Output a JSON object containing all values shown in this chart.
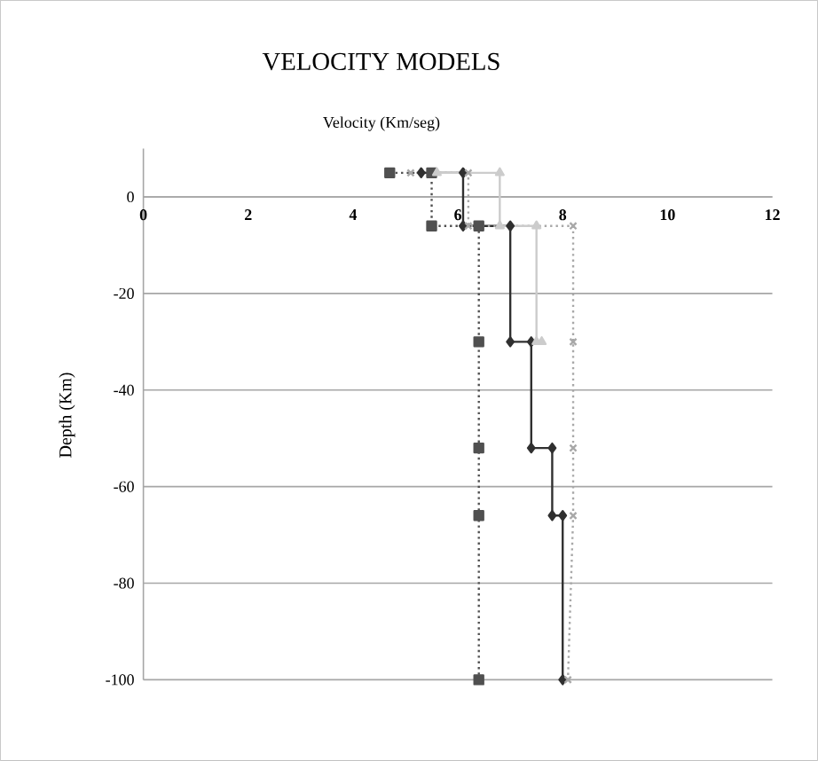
{
  "chart_data": {
    "type": "line",
    "title": "VELOCITY MODELS",
    "xlabel": "Velocity (Km/seg)",
    "ylabel": "Depth (Km)",
    "xlim": [
      0,
      12
    ],
    "xticks": [
      0,
      2,
      4,
      6,
      8,
      10,
      12
    ],
    "ylim": [
      -100,
      10
    ],
    "yticks": [
      0,
      -20,
      -40,
      -60,
      -80,
      -100
    ],
    "grid": "y",
    "series": [
      {
        "color": "#505050",
        "marker": "square",
        "line_style": "dotted",
        "x": [
          4.7,
          5.5,
          5.5,
          6.4,
          6.4,
          6.4,
          6.4,
          6.4
        ],
        "values": [
          5,
          5,
          -6,
          -6,
          -30,
          -52,
          -66,
          -100
        ]
      },
      {
        "color": "#303030",
        "marker": "diamond",
        "line_style": "solid",
        "x": [
          5.3,
          6.1,
          6.1,
          7.0,
          7.0,
          7.4,
          7.4,
          7.8,
          7.8,
          8.0,
          8.0
        ],
        "values": [
          5,
          5,
          -6,
          -6,
          -30,
          -30,
          -52,
          -52,
          -66,
          -66,
          -100
        ]
      },
      {
        "color": "#a8a8a8",
        "marker": "cross",
        "line_style": "dotted",
        "x": [
          5.1,
          6.2,
          6.2,
          8.2,
          8.2,
          8.2,
          8.2,
          8.1
        ],
        "values": [
          5,
          5,
          -6,
          -6,
          -30,
          -52,
          -66,
          -100
        ]
      },
      {
        "color": "#cccccc",
        "marker": "triangle",
        "line_style": "solid",
        "x": [
          5.6,
          6.8,
          6.8,
          7.5,
          7.5,
          7.6
        ],
        "values": [
          5,
          5,
          -6,
          -6,
          -30,
          -30
        ]
      }
    ]
  }
}
